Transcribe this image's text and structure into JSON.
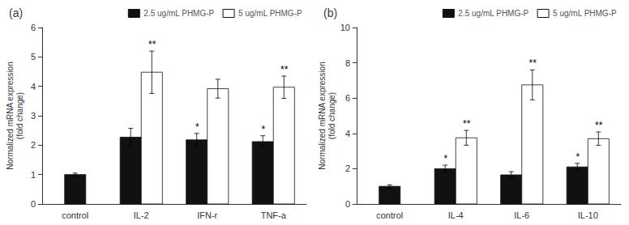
{
  "chart_data": [
    {
      "type": "bar",
      "title": "(a)",
      "ylabel": "Normalized mRNA expression\n(fold change)",
      "categories": [
        "control",
        "IL-2",
        "IFN-r",
        "TNF-a"
      ],
      "series": [
        {
          "name": "2.5 ug/mL PHMG-P",
          "color": "#111111",
          "values": [
            1.0,
            2.27,
            2.18,
            2.12
          ],
          "errors": [
            0.05,
            0.3,
            0.22,
            0.2
          ],
          "significance": [
            null,
            null,
            "*",
            "*"
          ]
        },
        {
          "name": "5 ug/mL PHMG-P",
          "color": "#ffffff",
          "values": [
            null,
            4.48,
            3.92,
            3.97
          ],
          "errors": [
            null,
            0.72,
            0.32,
            0.38
          ],
          "significance": [
            null,
            "**",
            null,
            "**"
          ]
        }
      ],
      "ylim": [
        0,
        6
      ],
      "yticks": [
        0,
        1,
        2,
        3,
        4,
        5,
        6
      ],
      "grid": false,
      "legend": "upper right"
    },
    {
      "type": "bar",
      "title": "(b)",
      "ylabel": "Normalized mRNA expression\n(fold change)",
      "categories": [
        "control",
        "IL-4",
        "IL-6",
        "IL-10"
      ],
      "series": [
        {
          "name": "2.5 ug/mL PHMG-P",
          "color": "#111111",
          "values": [
            1.0,
            2.0,
            1.65,
            2.1
          ],
          "errors": [
            0.08,
            0.2,
            0.18,
            0.2
          ],
          "significance": [
            null,
            "*",
            null,
            "*"
          ]
        },
        {
          "name": "5 ug/mL PHMG-P",
          "color": "#ffffff",
          "values": [
            null,
            3.75,
            6.75,
            3.7
          ],
          "errors": [
            null,
            0.42,
            0.85,
            0.38
          ],
          "significance": [
            null,
            "**",
            "**",
            "**"
          ]
        }
      ],
      "ylim": [
        0,
        10
      ],
      "yticks": [
        0,
        2,
        4,
        6,
        8,
        10
      ],
      "grid": false,
      "legend": "upper right"
    }
  ]
}
